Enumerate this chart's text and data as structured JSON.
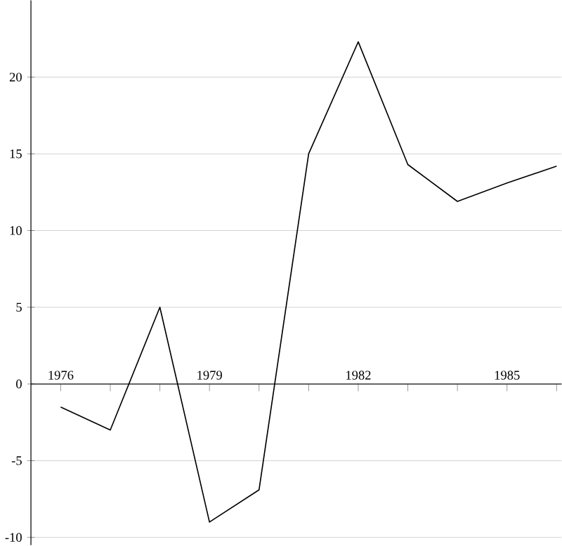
{
  "chart_data": {
    "type": "line",
    "x": [
      1976,
      1977,
      1978,
      1979,
      1980,
      1981,
      1982,
      1983,
      1984,
      1985,
      1986
    ],
    "series": [
      {
        "color": "#000000",
        "values": [
          -1.5,
          -3.0,
          5.0,
          -9.0,
          -6.9,
          15.0,
          22.3,
          14.3,
          11.9,
          13.1,
          14.2
        ]
      }
    ],
    "xlim": [
      1975.4,
      1986.1
    ],
    "ylim": [
      -10.5,
      25
    ],
    "xticks": [
      1976,
      {
        "value": 1977,
        "label": null
      },
      {
        "value": 1978,
        "label": null
      },
      1979,
      {
        "value": 1980,
        "label": null
      },
      {
        "value": 1981,
        "label": null
      },
      1982,
      {
        "value": 1983,
        "label": null
      },
      {
        "value": 1984,
        "label": null
      },
      1985,
      {
        "value": 1986,
        "label": null
      }
    ],
    "yticks": [
      -10,
      -5,
      0,
      5,
      10,
      15,
      20
    ],
    "grid": "y",
    "marker": "none",
    "line_style": "solid"
  }
}
